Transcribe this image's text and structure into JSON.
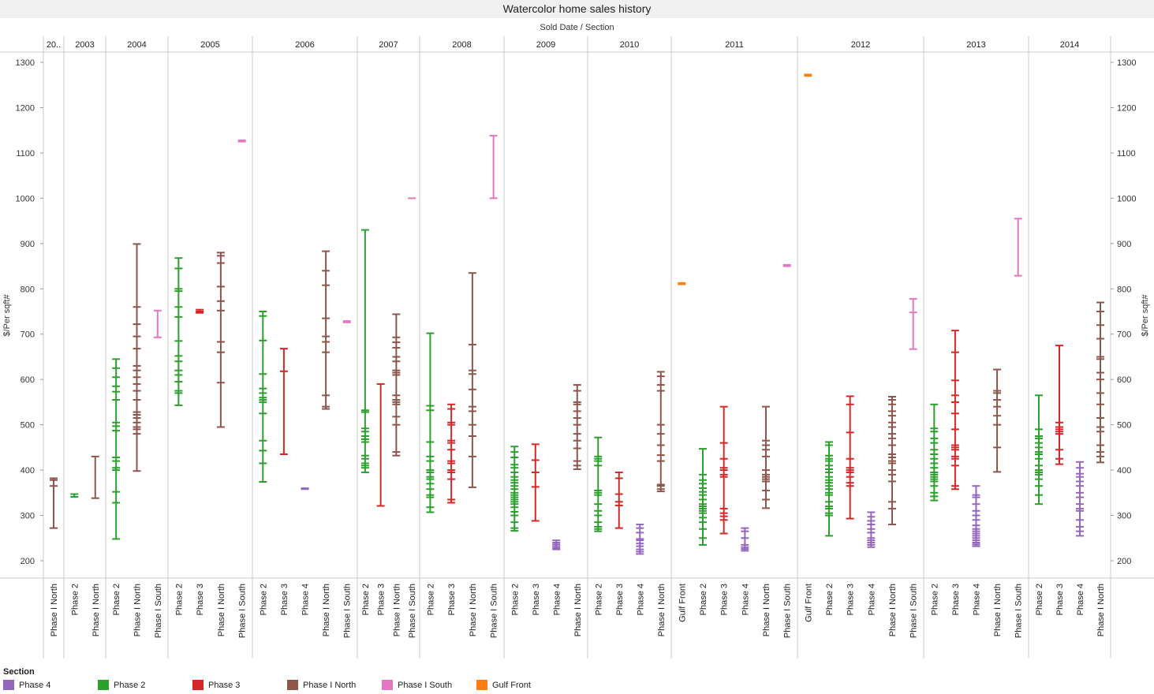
{
  "title": "Watercolor home sales history",
  "subtitle": "Sold Date  /  Section",
  "legend_title": "Section",
  "legend": [
    {
      "name": "Phase 4",
      "color": "#9467bd"
    },
    {
      "name": "Phase 2",
      "color": "#2ca02c"
    },
    {
      "name": "Phase 3",
      "color": "#d62728"
    },
    {
      "name": "Phase I North",
      "color": "#8c564b"
    },
    {
      "name": "Phase I South",
      "color": "#e377c2"
    },
    {
      "name": "Gulf Front",
      "color": "#ff7f0e"
    }
  ],
  "chart_data": {
    "type": "scatter",
    "mark": "dash",
    "ylabel": "$/Per sqft#",
    "ylim": [
      170,
      1310
    ],
    "yticks": [
      200,
      300,
      400,
      500,
      600,
      700,
      800,
      900,
      1000,
      1100,
      1200,
      1300
    ],
    "grid": false,
    "axis_on_both_sides": true,
    "x_levels": [
      "Sold Date (year)",
      "Section"
    ],
    "colors": {
      "Phase 4": "#9467bd",
      "Phase 2": "#2ca02c",
      "Phase 3": "#d62728",
      "Phase I North": "#8c564b",
      "Phase I South": "#e377c2",
      "Gulf Front": "#ff7f0e"
    },
    "panels": [
      {
        "year": "20..",
        "columns": [
          {
            "section": "Phase I North",
            "min": 272,
            "max": 382,
            "values": [
              272,
              365,
              378,
              382
            ]
          }
        ]
      },
      {
        "year": "2003",
        "columns": [
          {
            "section": "Phase 2",
            "min": 341,
            "max": 347,
            "values": [
              341,
              347
            ]
          },
          {
            "section": "Phase I North",
            "min": 338,
            "max": 430,
            "values": [
              338,
              430
            ]
          }
        ]
      },
      {
        "year": "2004",
        "columns": [
          {
            "section": "Phase 2",
            "min": 248,
            "max": 645,
            "values": [
              248,
              328,
              352,
              400,
              405,
              420,
              428,
              487,
              497,
              505,
              555,
              573,
              585,
              605,
              625,
              645
            ]
          },
          {
            "section": "Phase I North",
            "min": 398,
            "max": 899,
            "values": [
              398,
              480,
              490,
              495,
              505,
              515,
              522,
              528,
              555,
              575,
              590,
              605,
              620,
              630,
              668,
              695,
              722,
              760,
              899
            ]
          },
          {
            "section": "Phase I South",
            "min": 693,
            "max": 752,
            "values": [
              693,
              752
            ]
          }
        ]
      },
      {
        "year": "2005",
        "columns": [
          {
            "section": "Phase 2",
            "min": 543,
            "max": 868,
            "values": [
              543,
              570,
              575,
              595,
              610,
              620,
              640,
              652,
              685,
              738,
              760,
              795,
              800,
              845,
              868
            ]
          },
          {
            "section": "Phase 3",
            "min": 747,
            "max": 754,
            "values": [
              747,
              750,
              754
            ]
          },
          {
            "section": "Phase I North",
            "min": 495,
            "max": 880,
            "values": [
              495,
              593,
              660,
              683,
              752,
              773,
              805,
              857,
              873,
              880
            ]
          },
          {
            "section": "Phase I South",
            "min": 1125,
            "max": 1128,
            "values": [
              1125,
              1128
            ]
          }
        ]
      },
      {
        "year": "2006",
        "columns": [
          {
            "section": "Phase 2",
            "min": 374,
            "max": 750,
            "values": [
              374,
              415,
              443,
              465,
              525,
              550,
              555,
              560,
              570,
              580,
              612,
              686,
              740,
              750
            ]
          },
          {
            "section": "Phase 3",
            "min": 435,
            "max": 668,
            "values": [
              435,
              618,
              668
            ]
          },
          {
            "section": "Phase 4",
            "min": 358,
            "max": 360,
            "values": [
              358,
              360
            ]
          },
          {
            "section": "Phase I North",
            "min": 535,
            "max": 883,
            "values": [
              535,
              540,
              565,
              660,
              683,
              695,
              735,
              808,
              840,
              883
            ]
          },
          {
            "section": "Phase I South",
            "min": 726,
            "max": 729,
            "values": [
              726,
              729
            ]
          }
        ]
      },
      {
        "year": "2007",
        "columns": [
          {
            "section": "Phase 2",
            "min": 395,
            "max": 930,
            "values": [
              395,
              405,
              410,
              415,
              425,
              432,
              462,
              468,
              475,
              485,
              492,
              528,
              532,
              930
            ]
          },
          {
            "section": "Phase 3",
            "min": 321,
            "max": 590,
            "values": [
              321,
              590
            ]
          },
          {
            "section": "Phase I North",
            "min": 432,
            "max": 744,
            "values": [
              432,
              440,
              500,
              518,
              545,
              550,
              555,
              565,
              610,
              615,
              620,
              640,
              650,
              670,
              682,
              693,
              744
            ]
          },
          {
            "section": "Phase I South",
            "min": 1000,
            "max": 1000,
            "values": [
              1000
            ]
          }
        ]
      },
      {
        "year": "2008",
        "columns": [
          {
            "section": "Phase 2",
            "min": 307,
            "max": 702,
            "values": [
              307,
              318,
              340,
              345,
              358,
              370,
              380,
              385,
              395,
              400,
              420,
              430,
              462,
              532,
              542,
              702
            ]
          },
          {
            "section": "Phase 3",
            "min": 328,
            "max": 545,
            "values": [
              328,
              335,
              380,
              395,
              400,
              415,
              420,
              445,
              460,
              465,
              500,
              505,
              535,
              545
            ]
          },
          {
            "section": "Phase I North",
            "min": 362,
            "max": 835,
            "values": [
              362,
              430,
              475,
              500,
              530,
              540,
              578,
              612,
              620,
              677,
              835
            ]
          },
          {
            "section": "Phase I South",
            "min": 1000,
            "max": 1138,
            "values": [
              1000,
              1138
            ]
          }
        ]
      },
      {
        "year": "2009",
        "columns": [
          {
            "section": "Phase 2",
            "min": 266,
            "max": 452,
            "values": [
              266,
              272,
              285,
              300,
              308,
              318,
              325,
              330,
              335,
              340,
              345,
              350,
              358,
              365,
              372,
              378,
              385,
              395,
              405,
              412,
              428,
              440,
              452
            ]
          },
          {
            "section": "Phase 3",
            "min": 288,
            "max": 457,
            "values": [
              288,
              363,
              395,
              422,
              457
            ]
          },
          {
            "section": "Phase 4",
            "min": 225,
            "max": 245,
            "values": [
              225,
              228,
              232,
              236,
              240,
              245
            ]
          },
          {
            "section": "Phase I North",
            "min": 402,
            "max": 588,
            "values": [
              402,
              410,
              420,
              448,
              465,
              480,
              500,
              515,
              530,
              545,
              550,
              575,
              588
            ]
          }
        ]
      },
      {
        "year": "2010",
        "columns": [
          {
            "section": "Phase 2",
            "min": 265,
            "max": 472,
            "values": [
              265,
              270,
              275,
              285,
              300,
              310,
              325,
              345,
              350,
              355,
              410,
              420,
              425,
              430,
              472
            ]
          },
          {
            "section": "Phase 3",
            "min": 272,
            "max": 395,
            "values": [
              272,
              322,
              330,
              347,
              382,
              395
            ]
          },
          {
            "section": "Phase 4",
            "min": 215,
            "max": 280,
            "values": [
              215,
              220,
              225,
              232,
              238,
              245,
              248,
              262,
              272,
              280
            ]
          },
          {
            "section": "Phase I North",
            "min": 353,
            "max": 617,
            "values": [
              353,
              358,
              365,
              368,
              420,
              433,
              455,
              480,
              500,
              575,
              588,
              607,
              617
            ]
          }
        ]
      },
      {
        "year": "2011",
        "columns": [
          {
            "section": "Gulf Front",
            "min": 810,
            "max": 813,
            "values": [
              810,
              813
            ]
          },
          {
            "section": "Phase 2",
            "min": 235,
            "max": 447,
            "values": [
              235,
              250,
              270,
              285,
              295,
              305,
              310,
              315,
              320,
              325,
              335,
              345,
              352,
              360,
              370,
              378,
              390,
              447
            ]
          },
          {
            "section": "Phase 3",
            "min": 260,
            "max": 540,
            "values": [
              260,
              290,
              298,
              305,
              315,
              385,
              390,
              400,
              405,
              425,
              460,
              540
            ]
          },
          {
            "section": "Phase 4",
            "min": 222,
            "max": 272,
            "values": [
              222,
              226,
              230,
              235,
              250,
              265,
              272
            ]
          },
          {
            "section": "Phase I North",
            "min": 316,
            "max": 540,
            "values": [
              316,
              335,
              355,
              375,
              380,
              385,
              390,
              400,
              430,
              445,
              455,
              465,
              540
            ]
          },
          {
            "section": "Phase I South",
            "min": 850,
            "max": 853,
            "values": [
              850,
              853
            ]
          }
        ]
      },
      {
        "year": "2012",
        "columns": [
          {
            "section": "Gulf Front",
            "min": 1270,
            "max": 1273,
            "values": [
              1270,
              1273
            ]
          },
          {
            "section": "Phase 2",
            "min": 255,
            "max": 462,
            "values": [
              255,
              300,
              305,
              315,
              320,
              330,
              345,
              350,
              358,
              365,
              372,
              378,
              385,
              395,
              402,
              410,
              420,
              425,
              432,
              455,
              462
            ]
          },
          {
            "section": "Phase 3",
            "min": 293,
            "max": 563,
            "values": [
              293,
              365,
              372,
              385,
              395,
              400,
              405,
              425,
              483,
              545,
              563
            ]
          },
          {
            "section": "Phase 4",
            "min": 230,
            "max": 307,
            "values": [
              230,
              235,
              240,
              245,
              250,
              262,
              270,
              280,
              288,
              297,
              307
            ]
          },
          {
            "section": "Phase I North",
            "min": 280,
            "max": 562,
            "values": [
              280,
              315,
              330,
              375,
              390,
              400,
              415,
              420,
              428,
              435,
              455,
              470,
              480,
              495,
              505,
              520,
              530,
              545,
              555,
              562
            ]
          },
          {
            "section": "Phase I South",
            "min": 667,
            "max": 778,
            "values": [
              667,
              748,
              778
            ]
          }
        ]
      },
      {
        "year": "2013",
        "columns": [
          {
            "section": "Phase 2",
            "min": 333,
            "max": 545,
            "values": [
              333,
              342,
              350,
              365,
              375,
              380,
              385,
              390,
              395,
              405,
              415,
              425,
              435,
              445,
              460,
              470,
              485,
              492,
              545
            ]
          },
          {
            "section": "Phase 3",
            "min": 358,
            "max": 708,
            "values": [
              358,
              365,
              410,
              425,
              430,
              445,
              450,
              455,
              490,
              525,
              550,
              565,
              598,
              660,
              708
            ]
          },
          {
            "section": "Phase 4",
            "min": 232,
            "max": 365,
            "values": [
              232,
              236,
              240,
              245,
              250,
              255,
              260,
              265,
              270,
              278,
              290,
              300,
              310,
              325,
              340,
              345,
              365
            ]
          },
          {
            "section": "Phase I North",
            "min": 396,
            "max": 622,
            "values": [
              396,
              450,
              500,
              520,
              540,
              555,
              570,
              575,
              622
            ]
          },
          {
            "section": "Phase I South",
            "min": 829,
            "max": 955,
            "values": [
              829,
              955
            ]
          }
        ]
      },
      {
        "year": "2014",
        "columns": [
          {
            "section": "Phase 2",
            "min": 325,
            "max": 565,
            "values": [
              325,
              345,
              365,
              380,
              390,
              395,
              400,
              410,
              425,
              435,
              440,
              450,
              460,
              470,
              475,
              490,
              565
            ]
          },
          {
            "section": "Phase 3",
            "min": 413,
            "max": 675,
            "values": [
              413,
              425,
              445,
              480,
              485,
              490,
              495,
              505,
              675
            ]
          },
          {
            "section": "Phase 4",
            "min": 255,
            "max": 418,
            "values": [
              255,
              265,
              275,
              290,
              310,
              315,
              325,
              340,
              350,
              365,
              375,
              385,
              392,
              405,
              418
            ]
          },
          {
            "section": "Phase I North",
            "min": 417,
            "max": 770,
            "values": [
              417,
              430,
              440,
              455,
              485,
              495,
              515,
              545,
              570,
              600,
              615,
              645,
              650,
              690,
              720,
              750,
              770
            ]
          }
        ]
      }
    ]
  }
}
